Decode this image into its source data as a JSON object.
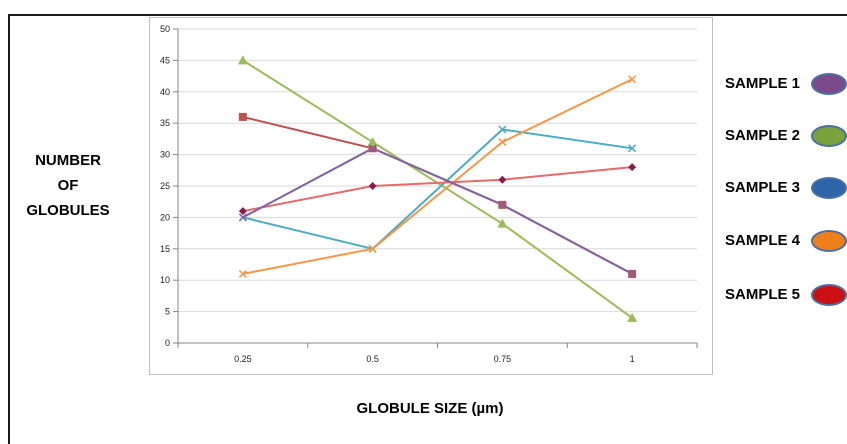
{
  "chart_data": {
    "type": "line",
    "xlabel": "GLOBULE SIZE (µm)",
    "ylabel_lines": [
      "NUMBER",
      "OF",
      "GLOBULES"
    ],
    "categories": [
      "0.25",
      "0.5",
      "0.75",
      "1"
    ],
    "ylim": [
      0,
      50
    ],
    "y_ticks": [
      "0",
      "5",
      "10",
      "15",
      "20",
      "25",
      "30",
      "35",
      "40",
      "45",
      "50"
    ],
    "grid": true,
    "legend_placement": "right",
    "series": [
      {
        "values": [
          36,
          31,
          22,
          11
        ],
        "color": "#c0504d",
        "marker": "square"
      },
      {
        "values": [
          45,
          32,
          19,
          4
        ],
        "color": "#9bbb59",
        "marker": "triangle"
      },
      {
        "values": [
          20,
          15,
          34,
          31
        ],
        "color": "#4bacc6",
        "marker": "x"
      },
      {
        "values": [
          11,
          15,
          32,
          42
        ],
        "color": "#f79646",
        "marker": "x"
      },
      {
        "values": [
          21,
          25,
          26,
          28
        ],
        "color": "#e46c6c",
        "marker": "diamond",
        "marker_color": "#8b1a4a"
      },
      {
        "values": [
          20,
          31,
          22,
          11
        ],
        "color": "#8064a2",
        "marker": "x",
        "segments": "upper"
      }
    ]
  },
  "legend": [
    {
      "label": "SAMPLE 1",
      "fill": "#7b4a8a"
    },
    {
      "label": "SAMPLE 2",
      "fill": "#77a33a"
    },
    {
      "label": "SAMPLE 3",
      "fill": "#2e65a8"
    },
    {
      "label": "SAMPLE 4",
      "fill": "#ef7f1a"
    },
    {
      "label": "SAMPLE 5",
      "fill": "#cc1010"
    }
  ]
}
